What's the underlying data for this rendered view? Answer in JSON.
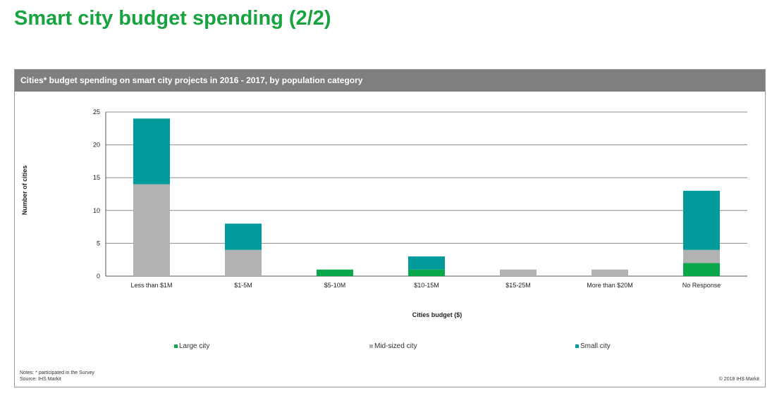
{
  "slide": {
    "title": "Smart city budget spending (2/2)"
  },
  "panel": {
    "header": "Cities* budget spending on smart city projects in 2016 - 2017, by population category",
    "notes_line1": "Notes: * participated in the Survey",
    "notes_line2": "Source: IHS Markit",
    "copyright": "© 2018 IHS Markit"
  },
  "chart_data": {
    "type": "bar",
    "stacked": true,
    "xlabel": "Cities budget ($)",
    "ylabel": "Number of cities",
    "ylim": [
      0,
      25
    ],
    "yticks": [
      0,
      5,
      10,
      15,
      20,
      25
    ],
    "grid": true,
    "legend_position": "bottom",
    "categories": [
      "Less than $1M",
      "$1-5M",
      "$5-10M",
      "$10-15M",
      "$15-25M",
      "More than $20M",
      "No Response"
    ],
    "series": [
      {
        "name": "Large city",
        "color": "#0aa64a",
        "values": [
          0,
          0,
          1,
          1,
          0,
          0,
          2
        ]
      },
      {
        "name": "Mid-sized city",
        "color": "#b1b2b4",
        "values": [
          14,
          4,
          0,
          0,
          1,
          1,
          2
        ]
      },
      {
        "name": "Small city",
        "color": "#009a9b",
        "values": [
          10,
          4,
          0,
          2,
          0,
          0,
          9
        ]
      }
    ]
  }
}
